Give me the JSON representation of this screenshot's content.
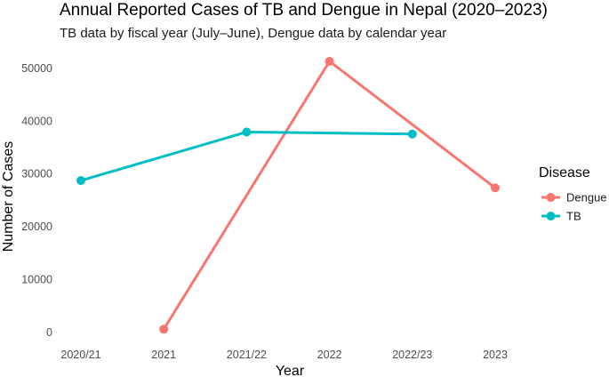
{
  "chart_data": {
    "type": "line",
    "title": "Annual Reported Cases of TB and Dengue in Nepal (2020–2023)",
    "subtitle": "TB data by fiscal year (July–June), Dengue data by calendar year",
    "xlabel": "Year",
    "ylabel": "Number of Cases",
    "categories": [
      "2020/21",
      "2021",
      "2021/22",
      "2022",
      "2022/23",
      "2023"
    ],
    "y_ticks": [
      0,
      10000,
      20000,
      30000,
      40000,
      50000
    ],
    "y_tick_labels": [
      "0",
      "10000",
      "20000",
      "30000",
      "40000",
      "50000"
    ],
    "ylim": [
      0,
      51500
    ],
    "grid": false,
    "legend": {
      "title": "Disease",
      "position": "right"
    },
    "series": [
      {
        "name": "Dengue",
        "color": "#F8766D",
        "x": [
          "2021",
          "2022",
          "2023"
        ],
        "values": [
          540,
          51240,
          27300
        ]
      },
      {
        "name": "TB",
        "color": "#00BFC4",
        "x": [
          "2020/21",
          "2021/22",
          "2022/23"
        ],
        "values": [
          28680,
          37860,
          37480
        ]
      }
    ]
  }
}
